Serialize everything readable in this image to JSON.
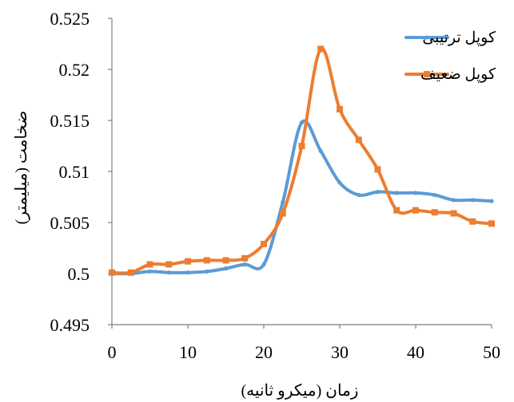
{
  "chart_data": {
    "type": "line",
    "title": "",
    "xlabel": "زمان (میکرو ثانیه)",
    "ylabel": "ضخامت (میلیمتر)",
    "xlim": [
      0,
      50
    ],
    "ylim": [
      0.495,
      0.525
    ],
    "x_ticks": [
      "0",
      "10",
      "20",
      "30",
      "40",
      "50"
    ],
    "y_ticks": [
      "0.495",
      "0.5",
      "0.505",
      "0.51",
      "0.515",
      "0.52",
      "0.525"
    ],
    "grid": false,
    "legend_position": "top-right",
    "series": [
      {
        "name": "کوپل ترتیبی",
        "color": "#5B9BD5",
        "marker": "dot",
        "points": [
          [
            0,
            0.5
          ],
          [
            2.5,
            0.5
          ],
          [
            5,
            0.5002
          ],
          [
            7.5,
            0.5001
          ],
          [
            10,
            0.5001
          ],
          [
            12.5,
            0.5002
          ],
          [
            15,
            0.5005
          ],
          [
            17.5,
            0.5009
          ],
          [
            20,
            0.5009
          ],
          [
            22.5,
            0.507
          ],
          [
            25,
            0.5148
          ],
          [
            27.5,
            0.512
          ],
          [
            30,
            0.5089
          ],
          [
            32.5,
            0.5077
          ],
          [
            35,
            0.508
          ],
          [
            37.5,
            0.5079
          ],
          [
            40,
            0.5079
          ],
          [
            42.5,
            0.5077
          ],
          [
            45,
            0.5072
          ],
          [
            47.5,
            0.5072
          ],
          [
            50,
            0.5071
          ]
        ]
      },
      {
        "name": "کوپل ضعیف",
        "color": "#ED7D31",
        "marker": "square",
        "points": [
          [
            0,
            0.5001
          ],
          [
            2.5,
            0.5001
          ],
          [
            5,
            0.5009
          ],
          [
            7.5,
            0.5009
          ],
          [
            10,
            0.5012
          ],
          [
            12.5,
            0.5013
          ],
          [
            15,
            0.5013
          ],
          [
            17.5,
            0.5015
          ],
          [
            20,
            0.5029
          ],
          [
            22.5,
            0.5059
          ],
          [
            25,
            0.5125
          ],
          [
            27.5,
            0.522
          ],
          [
            30,
            0.5161
          ],
          [
            32.5,
            0.5131
          ],
          [
            35,
            0.5102
          ],
          [
            37.5,
            0.5062
          ],
          [
            40,
            0.5062
          ],
          [
            42.5,
            0.506
          ],
          [
            45,
            0.5059
          ],
          [
            47.5,
            0.5051
          ],
          [
            50,
            0.5049
          ]
        ]
      }
    ]
  }
}
